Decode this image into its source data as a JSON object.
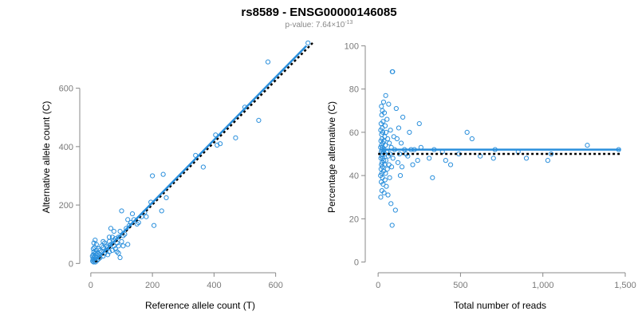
{
  "title": "rs8589 - ENSG00000146085",
  "subtitle": {
    "prefix": "p-value: 7.64×10",
    "exponent": "-13"
  },
  "colors": {
    "points": "#2a8fdc",
    "fit": "#2a8fdc",
    "reference": "#000000",
    "axis": "#888888"
  },
  "chart_data": [
    {
      "type": "scatter",
      "xlabel": "Reference allele count (T)",
      "ylabel": "Alternative allele count (C)",
      "xlim": [
        -10,
        720
      ],
      "ylim": [
        -10,
        760
      ],
      "xticks": [
        0,
        200,
        400,
        600
      ],
      "yticks": [
        0,
        200,
        400,
        600
      ],
      "xtick_labels": [
        "0",
        "200",
        "400",
        "600"
      ],
      "ytick_labels": [
        "0",
        "200",
        "400",
        "600"
      ],
      "fit_line": {
        "x": [
          15,
          700
        ],
        "y": [
          10,
          745
        ]
      },
      "reference_line": {
        "x": [
          15,
          720
        ],
        "y": [
          5,
          755
        ]
      },
      "points": [
        [
          705,
          755
        ],
        [
          575,
          690
        ],
        [
          545,
          490
        ],
        [
          500,
          535
        ],
        [
          470,
          430
        ],
        [
          420,
          410
        ],
        [
          410,
          405
        ],
        [
          405,
          440
        ],
        [
          365,
          330
        ],
        [
          340,
          370
        ],
        [
          245,
          225
        ],
        [
          235,
          305
        ],
        [
          230,
          180
        ],
        [
          205,
          130
        ],
        [
          200,
          300
        ],
        [
          195,
          210
        ],
        [
          180,
          160
        ],
        [
          175,
          175
        ],
        [
          165,
          160
        ],
        [
          150,
          135
        ],
        [
          140,
          150
        ],
        [
          135,
          170
        ],
        [
          125,
          130
        ],
        [
          120,
          150
        ],
        [
          115,
          120
        ],
        [
          110,
          100
        ],
        [
          105,
          95
        ],
        [
          100,
          180
        ],
        [
          100,
          75
        ],
        [
          95,
          110
        ],
        [
          90,
          90
        ],
        [
          90,
          60
        ],
        [
          85,
          70
        ],
        [
          80,
          50
        ],
        [
          80,
          85
        ],
        [
          75,
          80
        ],
        [
          75,
          110
        ],
        [
          70,
          45
        ],
        [
          70,
          90
        ],
        [
          65,
          65
        ],
        [
          65,
          120
        ],
        [
          60,
          40
        ],
        [
          60,
          75
        ],
        [
          55,
          55
        ],
        [
          55,
          30
        ],
        [
          50,
          60
        ],
        [
          50,
          45
        ],
        [
          45,
          70
        ],
        [
          45,
          35
        ],
        [
          40,
          25
        ],
        [
          40,
          55
        ],
        [
          35,
          40
        ],
        [
          35,
          60
        ],
        [
          30,
          20
        ],
        [
          30,
          45
        ],
        [
          28,
          30
        ],
        [
          25,
          15
        ],
        [
          25,
          50
        ],
        [
          22,
          35
        ],
        [
          20,
          10
        ],
        [
          20,
          28
        ],
        [
          18,
          45
        ],
        [
          18,
          65
        ],
        [
          16,
          20
        ],
        [
          15,
          5
        ],
        [
          15,
          35
        ],
        [
          14,
          80
        ],
        [
          13,
          15
        ],
        [
          12,
          25
        ],
        [
          12,
          55
        ],
        [
          11,
          10
        ],
        [
          10,
          40
        ],
        [
          10,
          70
        ],
        [
          9,
          5
        ],
        [
          9,
          20
        ],
        [
          8,
          30
        ],
        [
          8,
          50
        ],
        [
          7,
          15
        ],
        [
          6,
          8
        ],
        [
          5,
          25
        ],
        [
          95,
          20
        ],
        [
          90,
          35
        ],
        [
          105,
          60
        ],
        [
          120,
          65
        ],
        [
          85,
          40
        ],
        [
          130,
          140
        ],
        [
          155,
          140
        ],
        [
          40,
          75
        ],
        [
          60,
          90
        ],
        [
          75,
          60
        ]
      ]
    },
    {
      "type": "scatter",
      "xlabel": "Total number of reads",
      "ylabel": "Percentage alternative (C)",
      "xlim": [
        -20,
        1500
      ],
      "ylim": [
        -2,
        102
      ],
      "xticks": [
        0,
        500,
        1000,
        1500
      ],
      "yticks": [
        0,
        20,
        40,
        60,
        80,
        100
      ],
      "xtick_labels": [
        "0",
        "500",
        "1,000",
        "1,500"
      ],
      "ytick_labels": [
        "0",
        "20",
        "40",
        "60",
        "80",
        "100"
      ],
      "fit_line": {
        "x": [
          20,
          1470
        ],
        "y": [
          52,
          52
        ]
      },
      "reference_line": {
        "x": [
          0,
          1470
        ],
        "y": [
          50,
          50
        ]
      },
      "points": [
        [
          1460,
          52
        ],
        [
          1270,
          54
        ],
        [
          1050,
          50
        ],
        [
          1030,
          47
        ],
        [
          900,
          48
        ],
        [
          850,
          51
        ],
        [
          710,
          52
        ],
        [
          700,
          48
        ],
        [
          620,
          49
        ],
        [
          570,
          57
        ],
        [
          540,
          60
        ],
        [
          490,
          50
        ],
        [
          440,
          45
        ],
        [
          410,
          47
        ],
        [
          390,
          51
        ],
        [
          330,
          39
        ],
        [
          340,
          52
        ],
        [
          310,
          48
        ],
        [
          260,
          53
        ],
        [
          250,
          64
        ],
        [
          240,
          47
        ],
        [
          220,
          52
        ],
        [
          210,
          45
        ],
        [
          200,
          52
        ],
        [
          190,
          60
        ],
        [
          180,
          49
        ],
        [
          170,
          50
        ],
        [
          160,
          52
        ],
        [
          150,
          67
        ],
        [
          145,
          44
        ],
        [
          140,
          55
        ],
        [
          135,
          40
        ],
        [
          130,
          50
        ],
        [
          125,
          62
        ],
        [
          120,
          46
        ],
        [
          115,
          57
        ],
        [
          110,
          71
        ],
        [
          105,
          24
        ],
        [
          100,
          52
        ],
        [
          95,
          58
        ],
        [
          90,
          48
        ],
        [
          88,
          88
        ],
        [
          86,
          88
        ],
        [
          85,
          17
        ],
        [
          82,
          44
        ],
        [
          80,
          53
        ],
        [
          78,
          27
        ],
        [
          75,
          61
        ],
        [
          72,
          50
        ],
        [
          70,
          39
        ],
        [
          68,
          55
        ],
        [
          66,
          45
        ],
        [
          64,
          73
        ],
        [
          62,
          49
        ],
        [
          60,
          31
        ],
        [
          58,
          57
        ],
        [
          56,
          43
        ],
        [
          54,
          66
        ],
        [
          52,
          51
        ],
        [
          50,
          35
        ],
        [
          48,
          60
        ],
        [
          47,
          47
        ],
        [
          46,
          77
        ],
        [
          45,
          41
        ],
        [
          44,
          54
        ],
        [
          43,
          63
        ],
        [
          42,
          38
        ],
        [
          41,
          50
        ],
        [
          40,
          58
        ],
        [
          39,
          45
        ],
        [
          38,
          69
        ],
        [
          37,
          52
        ],
        [
          36,
          32
        ],
        [
          35,
          56
        ],
        [
          34,
          47
        ],
        [
          33,
          74
        ],
        [
          32,
          42
        ],
        [
          31,
          51
        ],
        [
          30,
          65
        ],
        [
          30,
          36
        ],
        [
          29,
          55
        ],
        [
          28,
          48
        ],
        [
          28,
          60
        ],
        [
          27,
          44
        ],
        [
          27,
          53
        ],
        [
          26,
          70
        ],
        [
          26,
          39
        ],
        [
          25,
          50
        ],
        [
          25,
          62
        ],
        [
          24,
          46
        ],
        [
          24,
          57
        ],
        [
          23,
          33
        ],
        [
          23,
          52
        ],
        [
          22,
          68
        ],
        [
          22,
          41
        ],
        [
          21,
          49
        ],
        [
          21,
          59
        ],
        [
          20,
          54
        ],
        [
          20,
          45
        ],
        [
          20,
          72
        ],
        [
          19,
          37
        ],
        [
          19,
          51
        ],
        [
          18,
          64
        ],
        [
          18,
          43
        ],
        [
          17,
          56
        ],
        [
          17,
          48
        ],
        [
          16,
          30
        ],
        [
          16,
          61
        ],
        [
          15,
          53
        ],
        [
          15,
          40
        ]
      ]
    }
  ]
}
